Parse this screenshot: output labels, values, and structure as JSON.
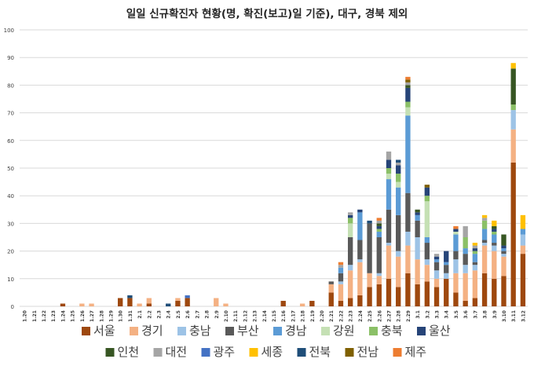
{
  "chart_data": {
    "type": "bar",
    "stacked": true,
    "title": "일일 신규확진자 현황(명, 확진(보고)일 기준), 대구, 경북 제외",
    "xlabel": "",
    "ylabel": "",
    "ylim": [
      0,
      100
    ],
    "yticks": [
      0,
      10,
      20,
      30,
      40,
      50,
      60,
      70,
      80,
      90,
      100
    ],
    "grid": true,
    "legend_position": "bottom",
    "categories": [
      "1.20",
      "1.21",
      "1.22",
      "1.23",
      "1.24",
      "1.25",
      "1.26",
      "1.27",
      "1.28",
      "1.29",
      "1.30",
      "1.31",
      "2.1",
      "2.2",
      "2.3",
      "2.4",
      "2.5",
      "2.6",
      "2.7",
      "2.8",
      "2.9",
      "2.10",
      "2.11",
      "2.12",
      "2.13",
      "2.14",
      "2.15",
      "2.16",
      "2.17",
      "2.18",
      "2.19",
      "2.20",
      "2.21",
      "2.22",
      "2.23",
      "2.24",
      "2.25",
      "2.26",
      "2.27",
      "2.28",
      "2.29",
      "3.1",
      "3.2",
      "3.3",
      "3.4",
      "3.5",
      "3.6",
      "3.7",
      "3.8",
      "3.9",
      "3.10",
      "3.11",
      "3.12"
    ],
    "series": [
      {
        "name": "서울",
        "color": "#9E480E",
        "values": [
          0,
          0,
          0,
          0,
          1,
          0,
          0,
          0,
          0,
          0,
          3,
          3,
          0,
          1,
          0,
          0,
          2,
          3,
          0,
          0,
          0,
          0,
          0,
          0,
          0,
          0,
          0,
          2,
          0,
          0,
          2,
          0,
          5,
          2,
          3,
          4,
          7,
          8,
          10,
          7,
          12,
          8,
          9,
          7,
          10,
          5,
          2,
          3,
          12,
          10,
          11,
          52,
          19
        ]
      },
      {
        "name": "경기",
        "color": "#F4B183",
        "values": [
          0,
          0,
          0,
          0,
          0,
          0,
          1,
          1,
          0,
          0,
          0,
          0,
          1,
          2,
          0,
          0,
          1,
          0,
          0,
          0,
          3,
          1,
          0,
          0,
          0,
          0,
          0,
          0,
          0,
          1,
          0,
          0,
          3,
          6,
          10,
          12,
          5,
          3,
          12,
          11,
          10,
          9,
          6,
          3,
          0,
          7,
          10,
          10,
          10,
          10,
          7,
          12,
          3
        ]
      },
      {
        "name": "충남",
        "color": "#9DC3E6",
        "values": [
          0,
          0,
          0,
          0,
          0,
          0,
          0,
          0,
          0,
          0,
          0,
          0,
          0,
          0,
          0,
          0,
          0,
          0,
          0,
          0,
          0,
          0,
          0,
          0,
          0,
          0,
          0,
          0,
          0,
          0,
          0,
          0,
          0,
          1,
          2,
          1,
          0,
          1,
          1,
          2,
          5,
          8,
          2,
          3,
          2,
          5,
          3,
          2,
          1,
          2,
          1,
          7,
          4
        ]
      },
      {
        "name": "부산",
        "color": "#595959",
        "values": [
          0,
          0,
          0,
          0,
          0,
          0,
          0,
          0,
          0,
          0,
          0,
          0,
          0,
          0,
          0,
          0,
          0,
          0,
          0,
          0,
          0,
          0,
          0,
          0,
          0,
          0,
          0,
          0,
          0,
          0,
          0,
          0,
          1,
          3,
          10,
          7,
          18,
          13,
          12,
          13,
          14,
          6,
          6,
          3,
          3,
          3,
          4,
          1,
          1,
          1,
          1,
          0,
          0
        ]
      },
      {
        "name": "경남",
        "color": "#5B9BD5",
        "values": [
          0,
          0,
          0,
          0,
          0,
          0,
          0,
          0,
          0,
          0,
          0,
          0,
          0,
          0,
          0,
          0,
          0,
          0,
          0,
          0,
          0,
          0,
          0,
          0,
          0,
          0,
          0,
          0,
          0,
          0,
          0,
          0,
          0,
          2,
          0,
          10,
          0,
          2,
          11,
          10,
          28,
          2,
          2,
          1,
          1,
          6,
          2,
          3,
          4,
          3,
          1,
          0,
          2
        ]
      },
      {
        "name": "강원",
        "color": "#C5E0B4",
        "values": [
          0,
          0,
          0,
          0,
          0,
          0,
          0,
          0,
          0,
          0,
          0,
          0,
          0,
          0,
          0,
          0,
          0,
          0,
          0,
          0,
          0,
          0,
          0,
          0,
          0,
          0,
          0,
          0,
          0,
          0,
          0,
          0,
          0,
          0,
          5,
          0,
          0,
          0,
          2,
          2,
          3,
          0,
          13,
          0,
          0,
          1,
          0,
          0,
          0,
          0,
          0,
          0,
          0
        ]
      },
      {
        "name": "충북",
        "color": "#8BC067",
        "values": [
          0,
          0,
          0,
          0,
          0,
          0,
          0,
          0,
          0,
          0,
          0,
          0,
          0,
          0,
          0,
          0,
          0,
          0,
          0,
          0,
          0,
          0,
          0,
          0,
          0,
          0,
          0,
          0,
          0,
          0,
          0,
          0,
          0,
          0,
          2,
          0,
          0,
          1,
          2,
          3,
          2,
          0,
          2,
          0,
          0,
          0,
          4,
          1,
          3,
          1,
          0,
          2,
          0
        ]
      },
      {
        "name": "울산",
        "color": "#264478",
        "values": [
          0,
          0,
          0,
          0,
          0,
          0,
          0,
          0,
          0,
          0,
          0,
          0,
          0,
          0,
          0,
          0,
          0,
          0,
          0,
          0,
          0,
          0,
          0,
          0,
          0,
          0,
          0,
          0,
          0,
          0,
          0,
          0,
          0,
          0,
          1,
          1,
          0,
          1,
          3,
          3,
          5,
          1,
          3,
          1,
          4,
          1,
          0,
          1,
          0,
          1,
          1,
          0,
          0
        ]
      },
      {
        "name": "인천",
        "color": "#375623",
        "values": [
          0,
          0,
          0,
          0,
          0,
          0,
          0,
          0,
          0,
          0,
          0,
          0,
          0,
          0,
          0,
          0,
          0,
          0,
          0,
          0,
          0,
          0,
          0,
          0,
          0,
          0,
          0,
          0,
          0,
          0,
          0,
          0,
          0,
          0,
          0,
          0,
          0,
          1,
          0,
          0,
          1,
          1,
          0,
          0,
          0,
          0,
          0,
          0,
          0,
          1,
          4,
          13,
          0
        ]
      },
      {
        "name": "대전",
        "color": "#A5A5A5",
        "values": [
          0,
          0,
          0,
          0,
          0,
          0,
          0,
          0,
          0,
          0,
          0,
          0,
          0,
          0,
          0,
          0,
          0,
          0,
          0,
          0,
          0,
          0,
          0,
          0,
          0,
          0,
          0,
          0,
          0,
          0,
          0,
          0,
          0,
          1,
          1,
          0,
          0,
          1,
          3,
          1,
          1,
          0,
          0,
          1,
          0,
          0,
          4,
          1,
          1,
          0,
          0,
          0,
          0
        ]
      },
      {
        "name": "광주",
        "color": "#4472C4",
        "values": [
          0,
          0,
          0,
          0,
          0,
          0,
          0,
          0,
          0,
          0,
          0,
          0,
          0,
          0,
          0,
          0,
          0,
          1,
          0,
          0,
          0,
          0,
          0,
          0,
          0,
          0,
          0,
          0,
          0,
          0,
          0,
          0,
          0,
          0,
          0,
          0,
          0,
          0,
          0,
          0,
          0,
          0,
          0,
          0,
          0,
          0,
          0,
          0,
          0,
          0,
          0,
          0,
          0
        ]
      },
      {
        "name": "세종",
        "color": "#FFC000",
        "values": [
          0,
          0,
          0,
          0,
          0,
          0,
          0,
          0,
          0,
          0,
          0,
          0,
          0,
          0,
          0,
          0,
          0,
          0,
          0,
          0,
          0,
          0,
          0,
          0,
          0,
          0,
          0,
          0,
          0,
          0,
          0,
          0,
          0,
          0,
          0,
          0,
          0,
          0,
          0,
          0,
          0,
          0,
          0,
          0,
          0,
          0,
          0,
          1,
          1,
          2,
          0,
          2,
          5
        ]
      },
      {
        "name": "전북",
        "color": "#1F4E79",
        "values": [
          0,
          0,
          0,
          0,
          0,
          0,
          0,
          0,
          0,
          0,
          0,
          1,
          0,
          0,
          0,
          1,
          0,
          0,
          0,
          0,
          0,
          0,
          0,
          0,
          0,
          0,
          0,
          0,
          0,
          0,
          0,
          0,
          0,
          0,
          0,
          0,
          1,
          0,
          0,
          1,
          0,
          0,
          0,
          0,
          0,
          0,
          0,
          0,
          0,
          0,
          0,
          0,
          0
        ]
      },
      {
        "name": "전남",
        "color": "#7F6000",
        "values": [
          0,
          0,
          0,
          0,
          0,
          0,
          0,
          0,
          0,
          0,
          0,
          0,
          0,
          0,
          0,
          0,
          0,
          0,
          0,
          0,
          0,
          0,
          0,
          0,
          0,
          0,
          0,
          0,
          0,
          0,
          0,
          0,
          0,
          0,
          0,
          0,
          0,
          0,
          0,
          0,
          1,
          0,
          1,
          0,
          0,
          0,
          0,
          0,
          0,
          0,
          0,
          0,
          0
        ]
      },
      {
        "name": "제주",
        "color": "#ED7D31",
        "values": [
          0,
          0,
          0,
          0,
          0,
          0,
          0,
          0,
          0,
          0,
          0,
          0,
          0,
          0,
          0,
          0,
          0,
          0,
          0,
          0,
          0,
          0,
          0,
          0,
          0,
          0,
          0,
          0,
          0,
          0,
          0,
          0,
          0,
          1,
          0,
          0,
          0,
          1,
          0,
          0,
          1,
          0,
          0,
          0,
          0,
          1,
          0,
          0,
          0,
          0,
          0,
          0,
          0
        ]
      }
    ]
  }
}
